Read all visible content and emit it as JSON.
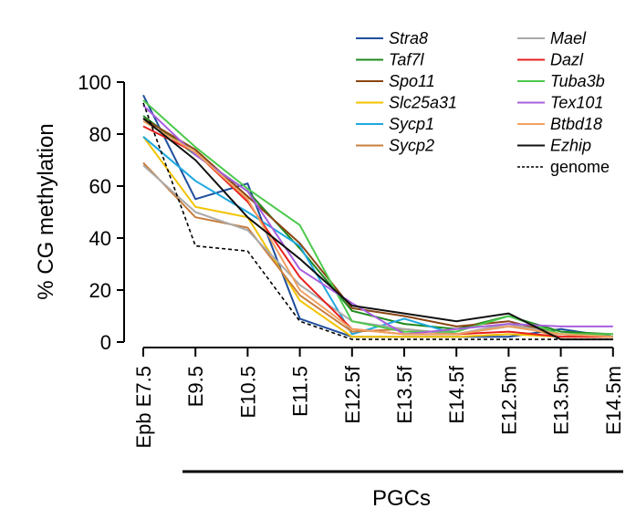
{
  "chart_data": {
    "type": "line",
    "title": "",
    "xlabel": "",
    "ylabel": "% CG methylation",
    "ylim": [
      0,
      100
    ],
    "yticks": [
      0,
      20,
      40,
      60,
      80,
      100
    ],
    "categories": [
      "Epb E7.5",
      "E9.5",
      "E10.5",
      "E11.5",
      "E12.5f",
      "E13.5f",
      "E14.5f",
      "E12.5m",
      "E13.5m",
      "E14.5m"
    ],
    "group_label": "PGCs",
    "legend_position": "top-right",
    "series": [
      {
        "name": "Stra8",
        "color": "#1f4e9c",
        "dash": false,
        "values": [
          95,
          55,
          61,
          9,
          2,
          2,
          2,
          2,
          5,
          2
        ]
      },
      {
        "name": "Taf7l",
        "color": "#1e8a1e",
        "dash": false,
        "values": [
          87,
          72,
          58,
          36,
          12,
          7,
          5,
          10,
          4,
          3
        ]
      },
      {
        "name": "Spo11",
        "color": "#8b4513",
        "dash": false,
        "values": [
          86,
          74,
          56,
          38,
          13,
          10,
          6,
          8,
          3,
          3
        ]
      },
      {
        "name": "Slc25a31",
        "color": "#f2c200",
        "dash": false,
        "values": [
          79,
          52,
          48,
          16,
          2,
          2,
          2,
          3,
          2,
          2
        ]
      },
      {
        "name": "Sycp1",
        "color": "#1fa8e0",
        "dash": false,
        "values": [
          79,
          62,
          50,
          37,
          3,
          9,
          3,
          6,
          3,
          2
        ]
      },
      {
        "name": "Sycp2",
        "color": "#c87d3c",
        "dash": false,
        "values": [
          69,
          48,
          44,
          18,
          4,
          5,
          3,
          7,
          2,
          3
        ]
      },
      {
        "name": "Mael",
        "color": "#aaaaaa",
        "dash": false,
        "values": [
          68,
          50,
          43,
          22,
          8,
          5,
          3,
          7,
          3,
          3
        ]
      },
      {
        "name": "Dazl",
        "color": "#e8201e",
        "dash": false,
        "values": [
          83,
          73,
          54,
          25,
          5,
          3,
          3,
          4,
          2,
          2
        ]
      },
      {
        "name": "Tuba3b",
        "color": "#4cc94c",
        "dash": false,
        "values": [
          93,
          75,
          59,
          45,
          8,
          4,
          4,
          10,
          3,
          3
        ]
      },
      {
        "name": "Tex101",
        "color": "#a95fe0",
        "dash": false,
        "values": [
          91,
          72,
          58,
          28,
          15,
          3,
          5,
          7,
          6,
          6
        ]
      },
      {
        "name": "Btbd18",
        "color": "#f0a060",
        "dash": false,
        "values": [
          85,
          73,
          55,
          20,
          5,
          3,
          3,
          6,
          3,
          2
        ]
      },
      {
        "name": "Ezhip",
        "color": "#111111",
        "dash": false,
        "values": [
          86,
          70,
          48,
          32,
          14,
          11,
          8,
          11,
          1,
          1
        ]
      },
      {
        "name": "genome",
        "color": "#000000",
        "dash": true,
        "values": [
          92,
          37,
          35,
          8,
          1,
          1,
          1,
          1,
          1,
          1
        ]
      }
    ]
  }
}
